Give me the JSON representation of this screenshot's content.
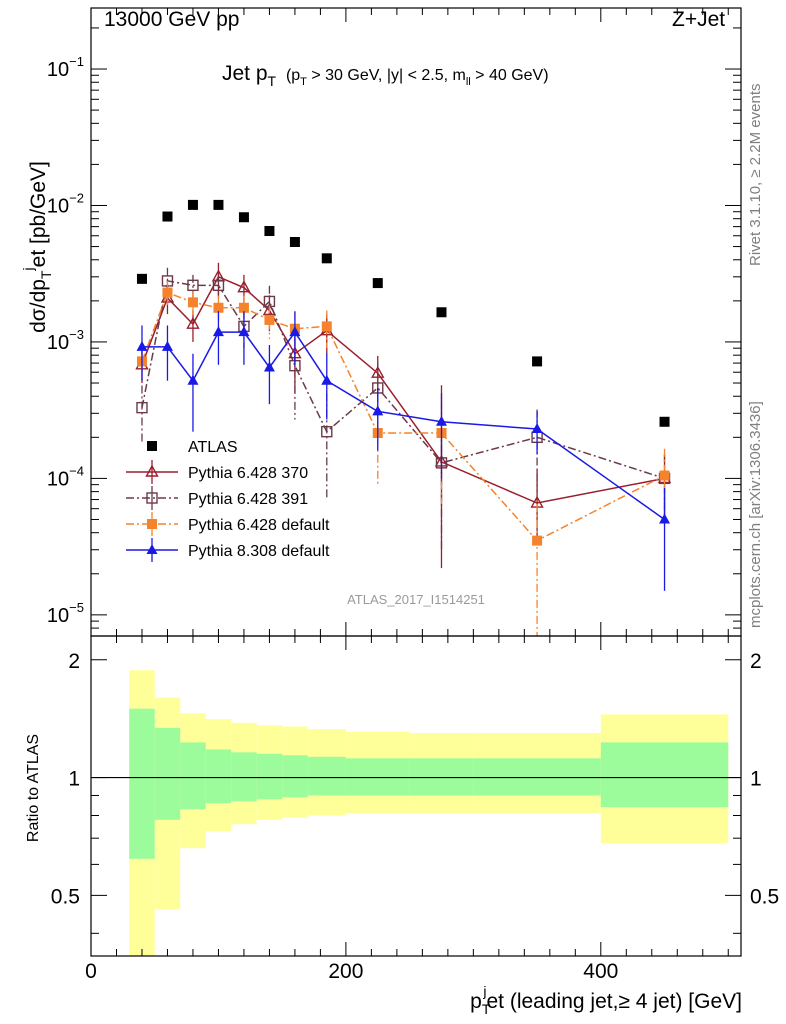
{
  "header": {
    "left": "13000 GeV pp",
    "right": "Z+Jet"
  },
  "side_labels": {
    "rivet": "Rivet 3.1.10, ≥ 2.2M events",
    "mcplots": "mcplots.cern.ch [arXiv:1306.3436]"
  },
  "chart_data": {
    "type": "scatter",
    "title_main": "Jet p",
    "title_main_sub": "T",
    "title_cuts": {
      "p": "(p",
      "p_sub": "T",
      "p_rest": " > 30 GeV, |y| < 2.5, m",
      "m_sub": "ll",
      "m_rest": " > 40 GeV)"
    },
    "analysis_id": "ATLAS_2017_I1514251",
    "ylabel": {
      "a": "dσ/dp",
      "a_sub": "T",
      "a_sup": "j",
      "b": "et [pb/GeV]"
    },
    "xlabel": {
      "a": "p",
      "a_sub": "T",
      "a_sup": "j",
      "b": "et (leading jet,≥ 4 jet) [GeV]"
    },
    "ratio_ylabel": "Ratio to ATLAS",
    "xlim": [
      0,
      510
    ],
    "ylim": [
      7e-06,
      0.28
    ],
    "yscale": "log",
    "ratio_ylim": [
      0.35,
      2.3
    ],
    "x_ticks": [
      "0",
      "200",
      "400"
    ],
    "y_ticks": [
      {
        "m": "10",
        "e": "−1",
        "v": 0.1
      },
      {
        "m": "10",
        "e": "−2",
        "v": 0.01
      },
      {
        "m": "10",
        "e": "−3",
        "v": 0.001
      },
      {
        "m": "10",
        "e": "−4",
        "v": 0.0001
      },
      {
        "m": "10",
        "e": "−5",
        "v": 1e-05
      }
    ],
    "ratio_ticks": [
      "0.5",
      "1",
      "2"
    ],
    "ratio_tick_values": [
      0.5,
      1,
      2
    ],
    "bin_edges": [
      30,
      50,
      70,
      90,
      110,
      130,
      150,
      170,
      200,
      250,
      300,
      400,
      500
    ],
    "x": [
      40,
      60,
      80,
      100,
      120,
      140,
      160,
      185,
      225,
      275,
      350,
      450
    ],
    "legend_position": "center-left",
    "series": [
      {
        "name": "ATLAS",
        "color": "#000000",
        "marker": "square-filled",
        "line": "none",
        "values": [
          0.0029,
          0.0083,
          0.0101,
          0.0101,
          0.0082,
          0.0065,
          0.0054,
          0.0041,
          0.0027,
          0.00165,
          0.00072,
          0.00026
        ]
      },
      {
        "name": "Pythia 6.428 370",
        "color": "#9a1e2c",
        "marker": "triangle-open",
        "line": "solid",
        "values": [
          0.00068,
          0.0021,
          0.00135,
          0.003,
          0.0025,
          0.0017,
          0.00082,
          0.00121,
          0.00059,
          0.000132,
          6.6e-05,
          0.0001
        ],
        "err_up": [
          0.00018,
          0.0005,
          0.00035,
          0.0008,
          0.0006,
          0.0005,
          0.0004,
          0.0004,
          0.0002,
          0.00035,
          5e-05,
          5e-05
        ],
        "err_dn": [
          0.00018,
          0.0005,
          0.00035,
          0.0008,
          0.0006,
          0.0005,
          0.0004,
          0.0004,
          0.0002,
          0.00011,
          3e-05,
          5e-05
        ]
      },
      {
        "name": "Pythia 6.428 391",
        "color": "#6b3a4a",
        "marker": "square-open",
        "line": "dashdot",
        "values": [
          0.00033,
          0.0028,
          0.0026,
          0.0026,
          0.0013,
          0.00198,
          0.00067,
          0.00022,
          0.00046,
          0.00013,
          0.0002,
          0.0001
        ],
        "err_up": [
          0.00015,
          0.0007,
          0.0005,
          0.0005,
          0.0004,
          0.0006,
          0.0004,
          0.0002,
          0.00025,
          0.0001,
          0.00012,
          5e-05
        ],
        "err_dn": [
          0.00015,
          0.0007,
          0.0005,
          0.0005,
          0.0004,
          0.0006,
          0.0004,
          0.00015,
          0.00025,
          0.0001,
          0.00012,
          5e-05
        ]
      },
      {
        "name": "Pythia 6.428 default",
        "color": "#f5832b",
        "marker": "square-filled",
        "line": "dashdot",
        "values": [
          0.00072,
          0.0023,
          0.00195,
          0.00178,
          0.00178,
          0.00145,
          0.00125,
          0.0013,
          0.000215,
          0.000215,
          3.5e-05,
          0.000105
        ],
        "err_up": [
          0.0002,
          0.0005,
          0.0004,
          0.0004,
          0.0004,
          0.0004,
          0.0004,
          0.0004,
          0.00012,
          0.00015,
          3e-05,
          6e-05
        ],
        "err_dn": [
          0.0002,
          0.0005,
          0.0004,
          0.0004,
          0.0004,
          0.0004,
          0.0004,
          0.0004,
          0.000125,
          0.00015,
          2.8e-05,
          6e-05
        ]
      },
      {
        "name": "Pythia 8.308 default",
        "color": "#1a1ae6",
        "marker": "triangle-filled",
        "line": "solid",
        "values": [
          0.00092,
          0.00092,
          0.00052,
          0.00118,
          0.00118,
          0.00065,
          0.00118,
          0.00052,
          0.00031,
          0.00026,
          0.00023,
          5e-05
        ],
        "err_up": [
          0.0004,
          0.0004,
          0.0003,
          0.0005,
          0.0005,
          0.0003,
          0.0005,
          0.0003,
          0.00015,
          0.00016,
          8e-05,
          3.5e-05
        ],
        "err_dn": [
          0.0004,
          0.0004,
          0.0003,
          0.0005,
          0.0005,
          0.0003,
          0.0005,
          0.00025,
          0.00015,
          0.00016,
          8e-05,
          3.5e-05
        ]
      }
    ],
    "ratio_band_stat": {
      "color": "#9cfc9c",
      "lo": [
        0.62,
        0.78,
        0.83,
        0.86,
        0.87,
        0.88,
        0.89,
        0.9,
        0.9,
        0.9,
        0.9,
        0.84
      ],
      "hi": [
        1.5,
        1.34,
        1.23,
        1.18,
        1.16,
        1.15,
        1.14,
        1.13,
        1.12,
        1.12,
        1.12,
        1.23
      ]
    },
    "ratio_band_total": {
      "color": "#ffff99",
      "lo": [
        0.32,
        0.46,
        0.66,
        0.73,
        0.76,
        0.78,
        0.79,
        0.8,
        0.81,
        0.81,
        0.81,
        0.68
      ],
      "hi": [
        1.88,
        1.6,
        1.46,
        1.41,
        1.38,
        1.36,
        1.35,
        1.33,
        1.31,
        1.3,
        1.3,
        1.45
      ]
    }
  }
}
